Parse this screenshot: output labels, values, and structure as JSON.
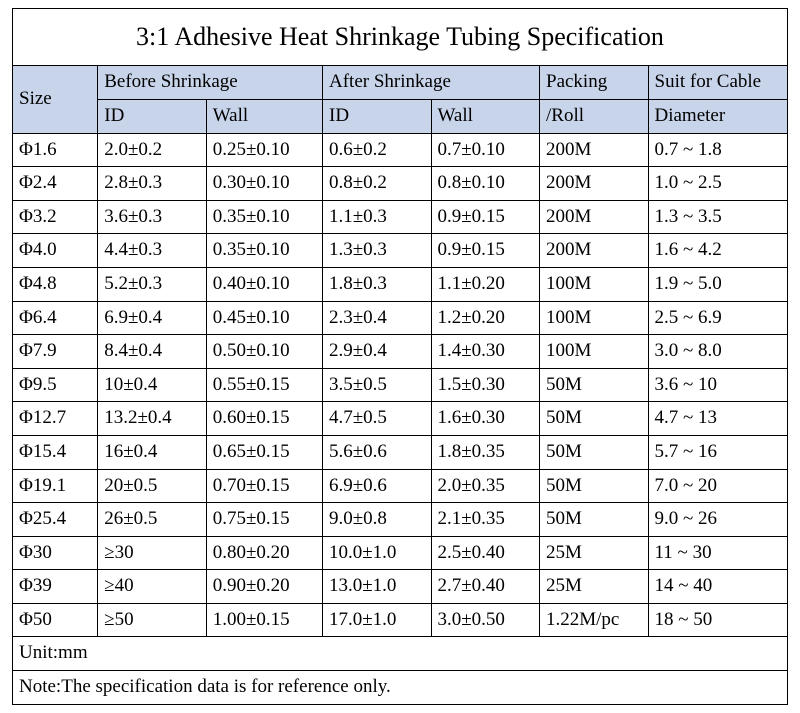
{
  "spec_table": {
    "type": "table",
    "title": "3:1 Adhesive Heat Shrinkage Tubing Specification",
    "title_fontsize": 26,
    "cell_fontsize": 19,
    "border_color": "#000000",
    "header_bg": "#c8d4ea",
    "background_color": "#ffffff",
    "font_family": "Times New Roman",
    "columns": {
      "size": "Size",
      "before_group": "Before Shrinkage",
      "after_group": "After Shrinkage",
      "id": "ID",
      "wall": "Wall",
      "packing_l1": "Packing",
      "packing_l2": "/Roll",
      "suit_l1": "Suit for Cable",
      "suit_l2": "Diameter"
    },
    "rows": [
      {
        "size": "Φ1.6",
        "b_id": "2.0±0.2",
        "b_wall": "0.25±0.10",
        "a_id": "0.6±0.2",
        "a_wall": "0.7±0.10",
        "pack": "200M",
        "suit": "0.7 ~ 1.8"
      },
      {
        "size": "Φ2.4",
        "b_id": "2.8±0.3",
        "b_wall": "0.30±0.10",
        "a_id": "0.8±0.2",
        "a_wall": "0.8±0.10",
        "pack": "200M",
        "suit": "1.0 ~ 2.5"
      },
      {
        "size": "Φ3.2",
        "b_id": "3.6±0.3",
        "b_wall": "0.35±0.10",
        "a_id": "1.1±0.3",
        "a_wall": "0.9±0.15",
        "pack": "200M",
        "suit": "1.3 ~ 3.5"
      },
      {
        "size": "Φ4.0",
        "b_id": "4.4±0.3",
        "b_wall": "0.35±0.10",
        "a_id": "1.3±0.3",
        "a_wall": "0.9±0.15",
        "pack": "200M",
        "suit": "1.6 ~ 4.2"
      },
      {
        "size": "Φ4.8",
        "b_id": "5.2±0.3",
        "b_wall": "0.40±0.10",
        "a_id": "1.8±0.3",
        "a_wall": "1.1±0.20",
        "pack": "100M",
        "suit": "1.9 ~ 5.0"
      },
      {
        "size": "Φ6.4",
        "b_id": "6.9±0.4",
        "b_wall": "0.45±0.10",
        "a_id": "2.3±0.4",
        "a_wall": "1.2±0.20",
        "pack": "100M",
        "suit": "2.5 ~ 6.9"
      },
      {
        "size": "Φ7.9",
        "b_id": "8.4±0.4",
        "b_wall": "0.50±0.10",
        "a_id": "2.9±0.4",
        "a_wall": "1.4±0.30",
        "pack": "100M",
        "suit": "3.0 ~ 8.0"
      },
      {
        "size": "Φ9.5",
        "b_id": "10±0.4",
        "b_wall": "0.55±0.15",
        "a_id": "3.5±0.5",
        "a_wall": "1.5±0.30",
        "pack": "50M",
        "suit": "3.6 ~ 10"
      },
      {
        "size": "Φ12.7",
        "b_id": "13.2±0.4",
        "b_wall": "0.60±0.15",
        "a_id": "4.7±0.5",
        "a_wall": "1.6±0.30",
        "pack": "50M",
        "suit": "4.7 ~ 13"
      },
      {
        "size": "Φ15.4",
        "b_id": "16±0.4",
        "b_wall": "0.65±0.15",
        "a_id": "5.6±0.6",
        "a_wall": "1.8±0.35",
        "pack": "50M",
        "suit": "5.7 ~ 16"
      },
      {
        "size": "Φ19.1",
        "b_id": "20±0.5",
        "b_wall": "0.70±0.15",
        "a_id": "6.9±0.6",
        "a_wall": "2.0±0.35",
        "pack": "50M",
        "suit": "7.0 ~ 20"
      },
      {
        "size": "Φ25.4",
        "b_id": "26±0.5",
        "b_wall": "0.75±0.15",
        "a_id": "9.0±0.8",
        "a_wall": "2.1±0.35",
        "pack": "50M",
        "suit": "9.0 ~ 26"
      },
      {
        "size": "Φ30",
        "b_id": "≥30",
        "b_wall": "0.80±0.20",
        "a_id": "10.0±1.0",
        "a_wall": "2.5±0.40",
        "pack": "25M",
        "suit": "11 ~ 30"
      },
      {
        "size": "Φ39",
        "b_id": "≥40",
        "b_wall": "0.90±0.20",
        "a_id": "13.0±1.0",
        "a_wall": "2.7±0.40",
        "pack": "25M",
        "suit": "14 ~ 40"
      },
      {
        "size": "Φ50",
        "b_id": "≥50",
        "b_wall": "1.00±0.15",
        "a_id": "17.0±1.0",
        "a_wall": "3.0±0.50",
        "pack": "1.22M/pc",
        "suit": "18 ~ 50"
      }
    ],
    "unit_note": "Unit:mm",
    "footer_note": "Note:The specification data is for reference only."
  }
}
